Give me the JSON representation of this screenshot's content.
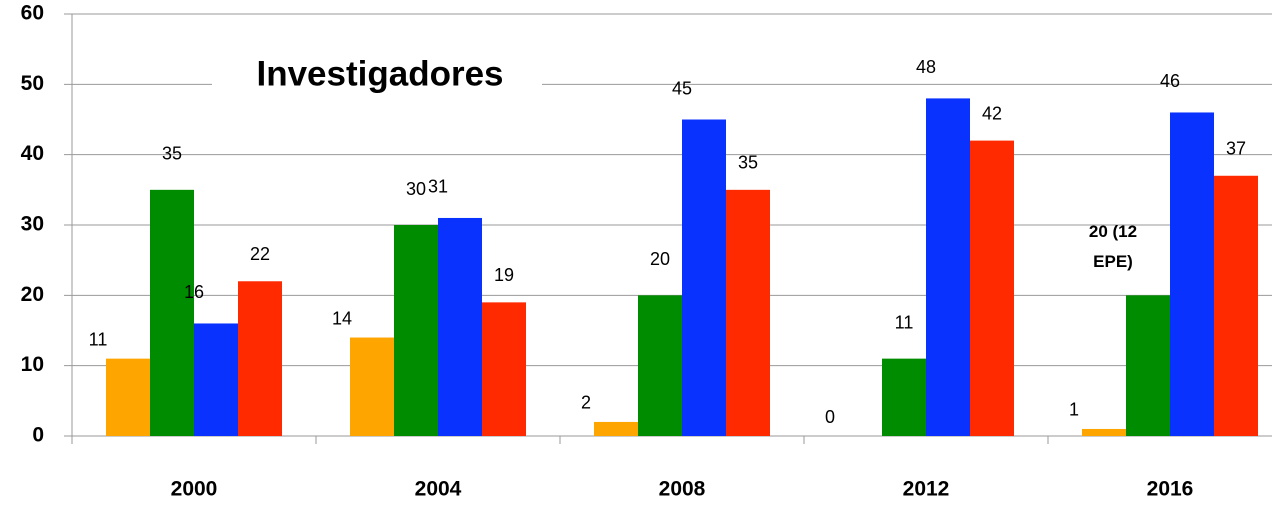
{
  "chart_data": {
    "type": "bar",
    "title": "Investigadores",
    "categories": [
      "2000",
      "2004",
      "2008",
      "2012",
      "2016"
    ],
    "series": [
      {
        "color": "#ffa500",
        "values": [
          11,
          14,
          2,
          0,
          1
        ]
      },
      {
        "color": "#008c00",
        "values": [
          35,
          30,
          20,
          11,
          20
        ],
        "value_labels": [
          "35",
          "30",
          "20",
          "11",
          "20 (12 EPE)"
        ]
      },
      {
        "color": "#0a32ff",
        "values": [
          16,
          31,
          45,
          48,
          46
        ]
      },
      {
        "color": "#ff2a00",
        "values": [
          22,
          19,
          35,
          42,
          37
        ]
      }
    ],
    "ylim": [
      0,
      60
    ],
    "yticks": [
      0,
      10,
      20,
      30,
      40,
      50,
      60
    ],
    "grid": true
  }
}
